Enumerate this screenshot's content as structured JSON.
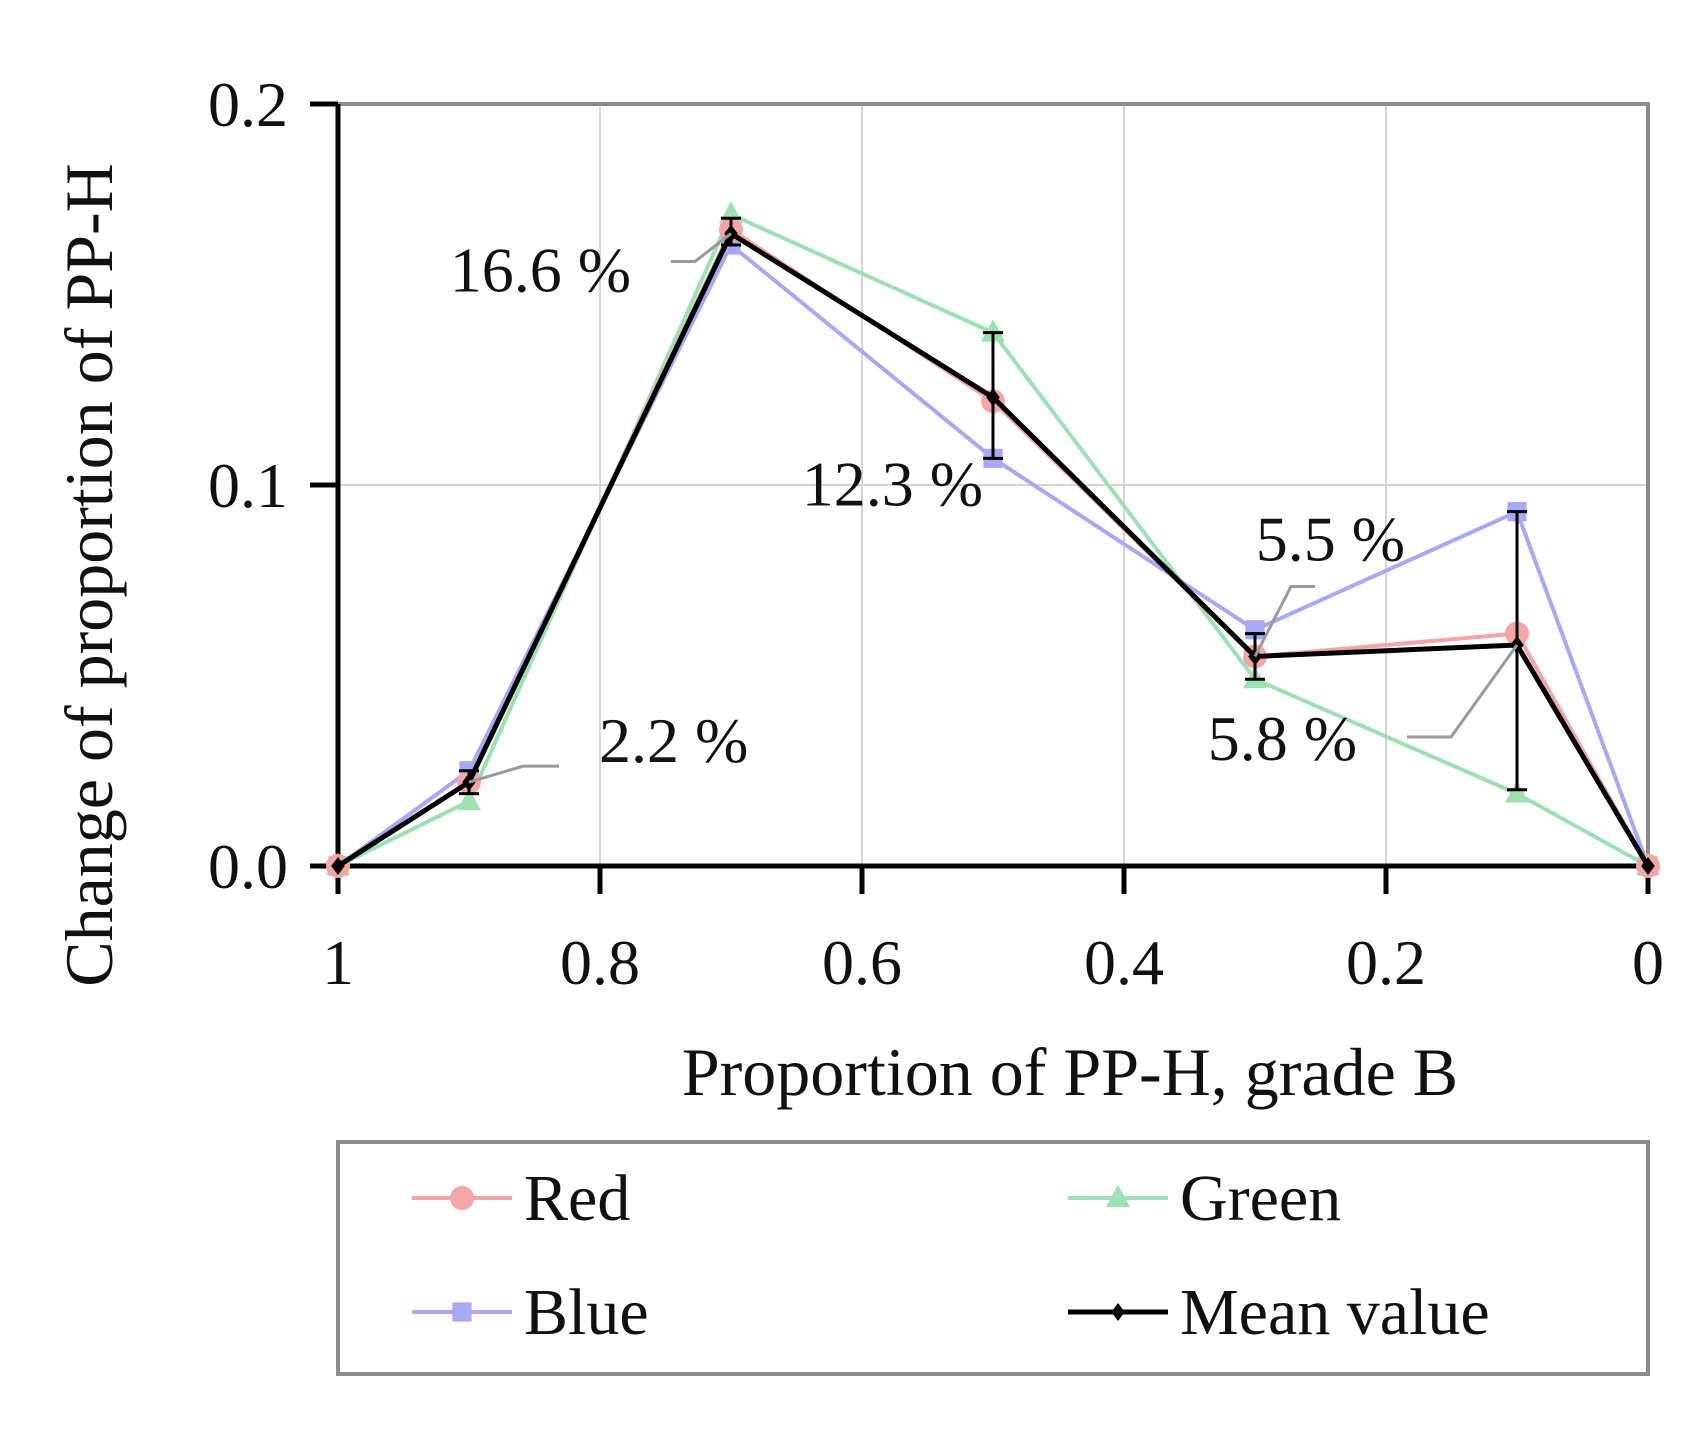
{
  "chart_data": {
    "type": "line",
    "title": "",
    "xlabel": "Proportion of PP-H, grade B",
    "ylabel": "Change of proportion of PP-H",
    "x": [
      1,
      0.9,
      0.7,
      0.5,
      0.3,
      0.1,
      0
    ],
    "xlim": [
      1,
      0
    ],
    "ylim": [
      0,
      0.2
    ],
    "x_ticks": [
      "1",
      "0.8",
      "0.6",
      "0.4",
      "0.2",
      "0"
    ],
    "x_tick_values": [
      1,
      0.8,
      0.6,
      0.4,
      0.2,
      0
    ],
    "y_ticks": [
      "0.0",
      "0.1",
      "0.2"
    ],
    "y_tick_values": [
      0,
      0.1,
      0.2
    ],
    "grid": true,
    "legend_placement": "bottom",
    "series": [
      {
        "name": "Red",
        "color": "#f4a6a6",
        "marker": "circle",
        "values": [
          0,
          0.022,
          0.167,
          0.122,
          0.055,
          0.061,
          0
        ]
      },
      {
        "name": "Green",
        "color": "#9ee0b4",
        "marker": "triangle",
        "values": [
          0,
          0.017,
          0.171,
          0.14,
          0.049,
          0.019,
          0
        ]
      },
      {
        "name": "Blue",
        "color": "#a8a8f4",
        "marker": "square",
        "values": [
          0,
          0.025,
          0.163,
          0.107,
          0.062,
          0.093,
          0
        ]
      },
      {
        "name": "Mean value",
        "color": "#000000",
        "marker": "diamond",
        "values": [
          0,
          0.022,
          0.166,
          0.123,
          0.055,
          0.058,
          0
        ],
        "error_low": [
          0,
          0.019,
          0.163,
          0.107,
          0.049,
          0.02,
          0
        ],
        "error_high": [
          0,
          0.025,
          0.17,
          0.14,
          0.061,
          0.093,
          0
        ]
      }
    ],
    "annotations": [
      {
        "text": "2.2 %",
        "x": 0.9,
        "y": 0.022
      },
      {
        "text": "16.6 %",
        "x": 0.7,
        "y": 0.166
      },
      {
        "text": "12.3 %",
        "x": 0.5,
        "y": 0.123
      },
      {
        "text": "5.5 %",
        "x": 0.3,
        "y": 0.055
      },
      {
        "text": "5.8 %",
        "x": 0.1,
        "y": 0.058
      }
    ]
  }
}
